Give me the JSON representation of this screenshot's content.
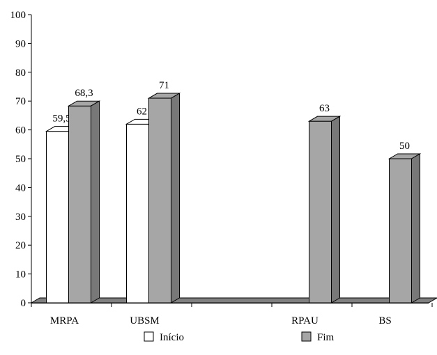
{
  "chart_data": {
    "type": "bar",
    "style": "3d",
    "title": "",
    "xlabel": "",
    "ylabel": "",
    "ylim": [
      0,
      100
    ],
    "yticks": [
      "0",
      "10",
      "20",
      "30",
      "40",
      "50",
      "60",
      "70",
      "80",
      "90",
      "100"
    ],
    "grid": false,
    "legend_position": "bottom",
    "categories": [
      "MRPA",
      "UBSM",
      "",
      "RPAU",
      "BS"
    ],
    "series": [
      {
        "name": "Início",
        "color": "#ffffff",
        "values": [
          59.5,
          62,
          null,
          null,
          null
        ],
        "labels": [
          "59,5",
          "62",
          "",
          "",
          ""
        ]
      },
      {
        "name": "Fim",
        "color": "#a6a6a6",
        "values": [
          68.3,
          71,
          null,
          63,
          50
        ],
        "labels": [
          "68,3",
          "71",
          "",
          "63",
          "50"
        ]
      }
    ]
  }
}
